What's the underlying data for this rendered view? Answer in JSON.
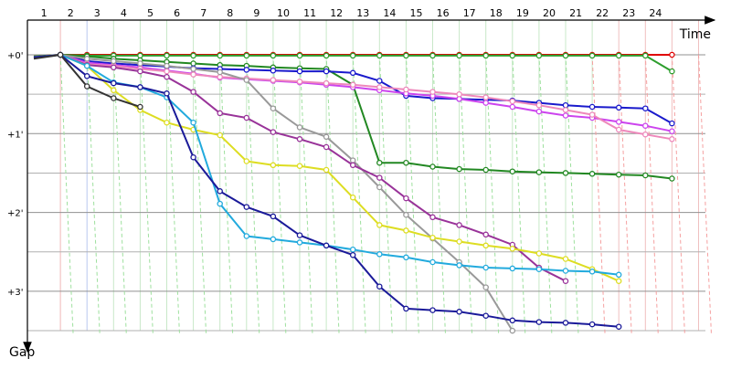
{
  "chart_data": {
    "type": "line",
    "title": "",
    "xlabel": "Time",
    "ylabel": "Gap",
    "x_categories": [
      "1",
      "2",
      "3",
      "4",
      "5",
      "6",
      "7",
      "8",
      "9",
      "10",
      "11",
      "12",
      "13",
      "14",
      "15",
      "16",
      "17",
      "18",
      "19",
      "20",
      "21",
      "22",
      "23",
      "24"
    ],
    "x_unit": "lap",
    "y_ticks": [
      "+0'",
      "+1'",
      "+2'",
      "+3'"
    ],
    "y_range_minutes": [
      0,
      3.45
    ],
    "y_inverted": true,
    "grid": true,
    "legend": "none",
    "series": [
      {
        "color": "#e00000",
        "points": [
          [
            0,
            0.02
          ],
          [
            1,
            0.0
          ],
          [
            2,
            0.0
          ],
          [
            3,
            0.0
          ],
          [
            4,
            0.0
          ],
          [
            5,
            0.0
          ],
          [
            6,
            0.0
          ],
          [
            7,
            0.0
          ],
          [
            8,
            0.0
          ],
          [
            9,
            0.0
          ],
          [
            10,
            0.0
          ],
          [
            11,
            0.0
          ],
          [
            12,
            0.0
          ],
          [
            13,
            0.0
          ],
          [
            14,
            0.0
          ],
          [
            15,
            0.0
          ],
          [
            16,
            0.0
          ],
          [
            17,
            0.0
          ],
          [
            18,
            0.0
          ],
          [
            19,
            0.0
          ],
          [
            20,
            0.0
          ],
          [
            21,
            0.0
          ],
          [
            22,
            0.0
          ],
          [
            23,
            0.0
          ],
          [
            24,
            0.0
          ]
        ]
      },
      {
        "color": "#2e9e2e",
        "points": [
          [
            0,
            0.02
          ],
          [
            1,
            0.0
          ],
          [
            2,
            0.01
          ],
          [
            3,
            0.01
          ],
          [
            4,
            0.01
          ],
          [
            5,
            0.01
          ],
          [
            6,
            0.01
          ],
          [
            7,
            0.01
          ],
          [
            8,
            0.01
          ],
          [
            9,
            0.01
          ],
          [
            10,
            0.01
          ],
          [
            11,
            0.01
          ],
          [
            12,
            0.01
          ],
          [
            13,
            0.01
          ],
          [
            14,
            0.01
          ],
          [
            15,
            0.01
          ],
          [
            16,
            0.01
          ],
          [
            17,
            0.01
          ],
          [
            18,
            0.01
          ],
          [
            19,
            0.01
          ],
          [
            20,
            0.01
          ],
          [
            21,
            0.01
          ],
          [
            22,
            0.01
          ],
          [
            23,
            0.01
          ],
          [
            24,
            0.21
          ]
        ]
      },
      {
        "color": "#228822",
        "points": [
          [
            0,
            0.03
          ],
          [
            1,
            0.0
          ],
          [
            2,
            0.02
          ],
          [
            3,
            0.05
          ],
          [
            4,
            0.07
          ],
          [
            5,
            0.09
          ],
          [
            6,
            0.11
          ],
          [
            7,
            0.13
          ],
          [
            8,
            0.14
          ],
          [
            9,
            0.16
          ],
          [
            10,
            0.17
          ],
          [
            11,
            0.18
          ],
          [
            12,
            0.38
          ],
          [
            13,
            1.37
          ],
          [
            14,
            1.37
          ],
          [
            15,
            1.42
          ],
          [
            16,
            1.45
          ],
          [
            17,
            1.46
          ],
          [
            18,
            1.48
          ],
          [
            19,
            1.49
          ],
          [
            20,
            1.5
          ],
          [
            21,
            1.51
          ],
          [
            22,
            1.52
          ],
          [
            23,
            1.53
          ],
          [
            24,
            1.57
          ]
        ]
      },
      {
        "color": "#1a1acc",
        "points": [
          [
            0,
            0.04
          ],
          [
            1,
            0.0
          ],
          [
            2,
            0.08
          ],
          [
            3,
            0.11
          ],
          [
            4,
            0.13
          ],
          [
            5,
            0.15
          ],
          [
            6,
            0.17
          ],
          [
            7,
            0.18
          ],
          [
            8,
            0.19
          ],
          [
            9,
            0.2
          ],
          [
            10,
            0.21
          ],
          [
            11,
            0.21
          ],
          [
            12,
            0.23
          ],
          [
            13,
            0.33
          ],
          [
            14,
            0.52
          ],
          [
            15,
            0.55
          ],
          [
            16,
            0.56
          ],
          [
            17,
            0.57
          ],
          [
            18,
            0.58
          ],
          [
            19,
            0.61
          ],
          [
            20,
            0.64
          ],
          [
            21,
            0.66
          ],
          [
            22,
            0.67
          ],
          [
            23,
            0.68
          ],
          [
            24,
            0.87
          ]
        ]
      },
      {
        "color": "#cc44ee",
        "points": [
          [
            0,
            0.03
          ],
          [
            1,
            0.0
          ],
          [
            2,
            0.1
          ],
          [
            3,
            0.13
          ],
          [
            4,
            0.16
          ],
          [
            5,
            0.2
          ],
          [
            6,
            0.24
          ],
          [
            7,
            0.29
          ],
          [
            8,
            0.31
          ],
          [
            9,
            0.33
          ],
          [
            10,
            0.35
          ],
          [
            11,
            0.38
          ],
          [
            12,
            0.41
          ],
          [
            13,
            0.45
          ],
          [
            14,
            0.49
          ],
          [
            15,
            0.52
          ],
          [
            16,
            0.56
          ],
          [
            17,
            0.61
          ],
          [
            18,
            0.66
          ],
          [
            19,
            0.72
          ],
          [
            20,
            0.77
          ],
          [
            21,
            0.8
          ],
          [
            22,
            0.85
          ],
          [
            23,
            0.9
          ],
          [
            24,
            0.97
          ]
        ]
      },
      {
        "color": "#ee88bb",
        "points": [
          [
            0,
            0.03
          ],
          [
            1,
            0.0
          ],
          [
            2,
            0.12
          ],
          [
            3,
            0.14
          ],
          [
            4,
            0.18
          ],
          [
            5,
            0.21
          ],
          [
            6,
            0.25
          ],
          [
            7,
            0.28
          ],
          [
            8,
            0.3
          ],
          [
            9,
            0.32
          ],
          [
            10,
            0.34
          ],
          [
            11,
            0.36
          ],
          [
            12,
            0.38
          ],
          [
            13,
            0.41
          ],
          [
            14,
            0.44
          ],
          [
            15,
            0.47
          ],
          [
            16,
            0.5
          ],
          [
            17,
            0.54
          ],
          [
            18,
            0.59
          ],
          [
            19,
            0.64
          ],
          [
            20,
            0.7
          ],
          [
            21,
            0.76
          ],
          [
            22,
            0.95
          ],
          [
            23,
            1.01
          ],
          [
            24,
            1.07
          ]
        ]
      },
      {
        "color": "#999999",
        "points": [
          [
            0,
            0.03
          ],
          [
            1,
            0.0
          ],
          [
            2,
            0.05
          ],
          [
            3,
            0.08
          ],
          [
            4,
            0.11
          ],
          [
            5,
            0.14
          ],
          [
            6,
            0.18
          ],
          [
            7,
            0.22
          ],
          [
            8,
            0.32
          ],
          [
            9,
            0.68
          ],
          [
            10,
            0.92
          ],
          [
            11,
            1.04
          ],
          [
            12,
            1.34
          ],
          [
            13,
            1.68
          ],
          [
            14,
            2.03
          ],
          [
            15,
            2.33
          ],
          [
            16,
            2.63
          ],
          [
            17,
            2.95
          ],
          [
            18,
            3.5
          ]
        ]
      },
      {
        "color": "#993399",
        "points": [
          [
            0,
            0.03
          ],
          [
            1,
            0.0
          ],
          [
            2,
            0.13
          ],
          [
            3,
            0.16
          ],
          [
            4,
            0.21
          ],
          [
            5,
            0.28
          ],
          [
            6,
            0.47
          ],
          [
            7,
            0.74
          ],
          [
            8,
            0.8
          ],
          [
            9,
            0.98
          ],
          [
            10,
            1.07
          ],
          [
            11,
            1.17
          ],
          [
            12,
            1.4
          ],
          [
            13,
            1.56
          ],
          [
            14,
            1.82
          ],
          [
            15,
            2.06
          ],
          [
            16,
            2.16
          ],
          [
            17,
            2.28
          ],
          [
            18,
            2.41
          ],
          [
            19,
            2.7
          ],
          [
            20,
            2.87
          ]
        ]
      },
      {
        "color": "#dddd22",
        "points": [
          [
            0,
            0.03
          ],
          [
            1,
            0.0
          ],
          [
            2,
            0.14
          ],
          [
            3,
            0.45
          ],
          [
            4,
            0.7
          ],
          [
            5,
            0.86
          ],
          [
            6,
            0.95
          ],
          [
            7,
            1.02
          ],
          [
            8,
            1.35
          ],
          [
            9,
            1.4
          ],
          [
            10,
            1.41
          ],
          [
            11,
            1.46
          ],
          [
            12,
            1.81
          ],
          [
            13,
            2.16
          ],
          [
            14,
            2.23
          ],
          [
            15,
            2.32
          ],
          [
            16,
            2.37
          ],
          [
            17,
            2.42
          ],
          [
            18,
            2.46
          ],
          [
            19,
            2.52
          ],
          [
            20,
            2.59
          ],
          [
            21,
            2.72
          ],
          [
            22,
            2.87
          ]
        ]
      },
      {
        "color": "#22aadd",
        "points": [
          [
            0,
            0.03
          ],
          [
            1,
            0.0
          ],
          [
            2,
            0.14
          ],
          [
            3,
            0.35
          ],
          [
            4,
            0.41
          ],
          [
            5,
            0.54
          ],
          [
            6,
            0.86
          ],
          [
            7,
            1.89
          ],
          [
            8,
            2.3
          ],
          [
            9,
            2.34
          ],
          [
            10,
            2.38
          ],
          [
            11,
            2.42
          ],
          [
            12,
            2.47
          ],
          [
            13,
            2.53
          ],
          [
            14,
            2.57
          ],
          [
            15,
            2.63
          ],
          [
            16,
            2.67
          ],
          [
            17,
            2.7
          ],
          [
            18,
            2.71
          ],
          [
            19,
            2.72
          ],
          [
            20,
            2.74
          ],
          [
            21,
            2.75
          ],
          [
            22,
            2.79
          ]
        ]
      },
      {
        "color": "#1a1a99",
        "points": [
          [
            0,
            0.03
          ],
          [
            1,
            0.0
          ],
          [
            2,
            0.27
          ],
          [
            3,
            0.36
          ],
          [
            4,
            0.41
          ],
          [
            5,
            0.49
          ],
          [
            6,
            1.3
          ],
          [
            7,
            1.73
          ],
          [
            8,
            1.93
          ],
          [
            9,
            2.05
          ],
          [
            10,
            2.29
          ],
          [
            11,
            2.42
          ],
          [
            12,
            2.54
          ],
          [
            13,
            2.94
          ],
          [
            14,
            3.22
          ],
          [
            15,
            3.24
          ],
          [
            16,
            3.26
          ],
          [
            17,
            3.31
          ],
          [
            18,
            3.37
          ],
          [
            19,
            3.39
          ],
          [
            20,
            3.4
          ],
          [
            21,
            3.42
          ],
          [
            22,
            3.45
          ]
        ]
      },
      {
        "color": "#333333",
        "points": [
          [
            0,
            0.05
          ],
          [
            1,
            0.0
          ],
          [
            2,
            0.4
          ],
          [
            3,
            0.55
          ],
          [
            4,
            0.66
          ]
        ]
      }
    ]
  }
}
